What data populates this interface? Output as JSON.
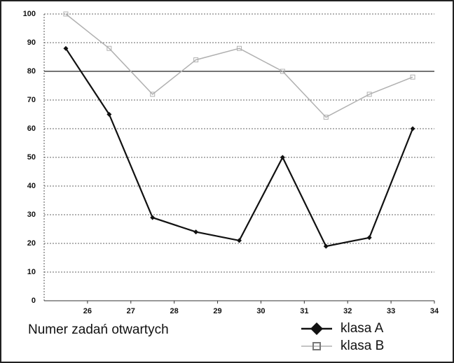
{
  "chart_data": {
    "type": "line",
    "x": [
      25.5,
      26.5,
      27.5,
      28.5,
      29.5,
      30.5,
      31.5,
      32.5,
      33.5
    ],
    "series": [
      {
        "name": "klasa A",
        "color": "#111111",
        "values": [
          88,
          65,
          29,
          24,
          21,
          50,
          19,
          22,
          60
        ]
      },
      {
        "name": "klasa B",
        "color": "#b0b0b0",
        "values": [
          100,
          88,
          72,
          84,
          88,
          80,
          64,
          72,
          78
        ]
      }
    ],
    "xlim": [
      25,
      34
    ],
    "xticks": [
      26,
      27,
      28,
      29,
      30,
      31,
      32,
      33,
      34
    ],
    "ylim": [
      0,
      100
    ],
    "yticks": [
      0,
      10,
      20,
      30,
      40,
      50,
      60,
      70,
      80,
      90,
      100
    ],
    "reference_line": 80,
    "grid": true,
    "x_label": "Numer zadań otwartych",
    "legend": "bottom-right"
  }
}
